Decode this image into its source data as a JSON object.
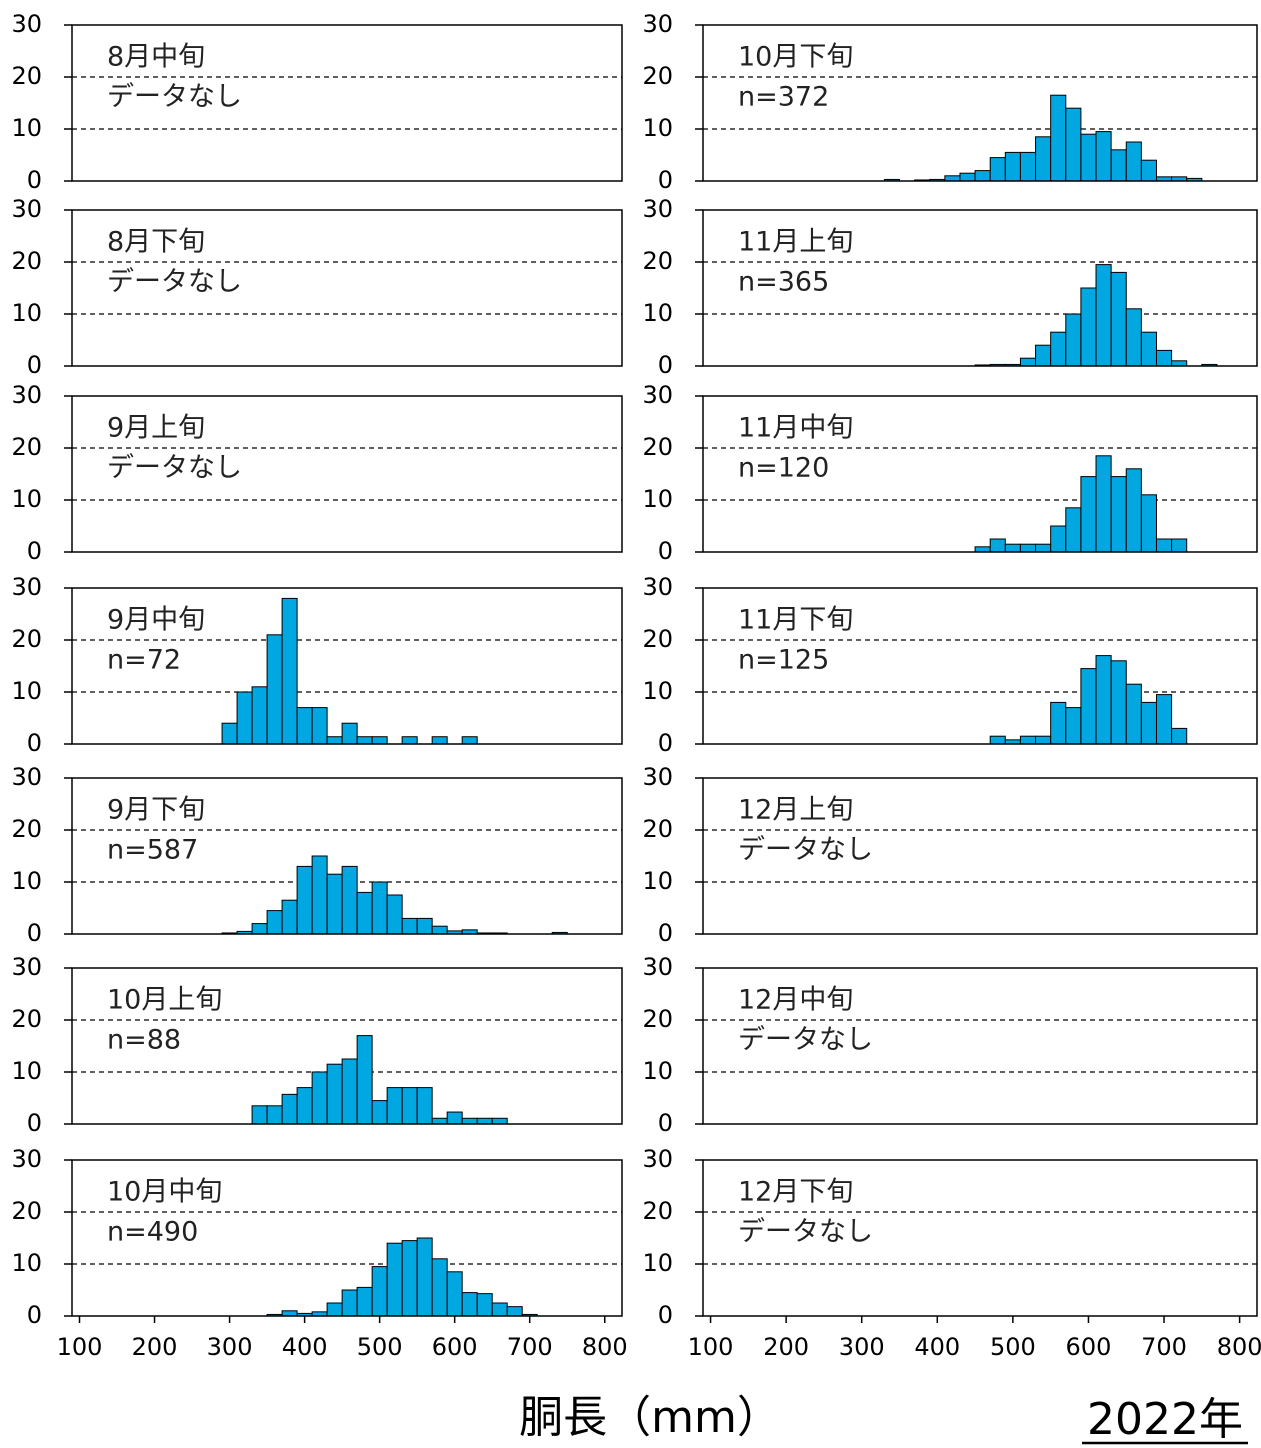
{
  "chart_data": [
    {
      "type": "histogram",
      "title": "8月中旬",
      "annotation": "データなし",
      "xlim": [
        90,
        823
      ],
      "ylim": [
        0,
        30
      ],
      "yticks": [
        0,
        10,
        20,
        30
      ],
      "grid": true,
      "color": "#00a7e1"
    },
    {
      "type": "histogram",
      "title": "8月下旬",
      "annotation": "データなし",
      "xlim": [
        90,
        823
      ],
      "ylim": [
        0,
        30
      ],
      "yticks": [
        0,
        10,
        20,
        30
      ],
      "grid": true,
      "color": "#00a7e1"
    },
    {
      "type": "histogram",
      "title": "9月上旬",
      "annotation": "データなし",
      "xlim": [
        90,
        823
      ],
      "ylim": [
        0,
        30
      ],
      "yticks": [
        0,
        10,
        20,
        30
      ],
      "grid": true,
      "color": "#00a7e1"
    },
    {
      "type": "histogram",
      "title": "9月中旬",
      "annotation": "n=72",
      "xlim": [
        90,
        823
      ],
      "ylim": [
        0,
        30
      ],
      "yticks": [
        0,
        10,
        20,
        30
      ],
      "grid": true,
      "color": "#00a7e1",
      "bins": [
        290,
        310,
        330,
        350,
        370,
        390,
        410,
        430,
        450,
        470,
        490,
        510,
        530,
        550,
        570,
        590,
        610,
        630
      ],
      "counts": [
        4,
        10,
        11,
        21,
        28,
        7,
        7,
        1.4,
        4,
        1.4,
        1.4,
        0,
        1.4,
        0,
        1.4,
        0,
        1.4
      ]
    },
    {
      "type": "histogram",
      "title": "9月下旬",
      "annotation": "n=587",
      "xlim": [
        90,
        823
      ],
      "ylim": [
        0,
        30
      ],
      "yticks": [
        0,
        10,
        20,
        30
      ],
      "grid": true,
      "color": "#00a7e1",
      "bins": [
        290,
        310,
        330,
        350,
        370,
        390,
        410,
        430,
        450,
        470,
        490,
        510,
        530,
        550,
        570,
        590,
        610,
        630,
        650,
        670,
        690,
        710,
        730,
        750
      ],
      "counts": [
        0.2,
        0.5,
        2,
        4.5,
        6.5,
        13,
        15,
        11.5,
        13,
        8,
        10,
        7.5,
        3,
        3,
        1.5,
        0.6,
        0.8,
        0.2,
        0.2,
        0,
        0,
        0,
        0.3
      ]
    },
    {
      "type": "histogram",
      "title": "10月上旬",
      "annotation": "n=88",
      "xlim": [
        90,
        823
      ],
      "ylim": [
        0,
        30
      ],
      "yticks": [
        0,
        10,
        20,
        30
      ],
      "grid": true,
      "color": "#00a7e1",
      "bins": [
        330,
        350,
        370,
        390,
        410,
        430,
        450,
        470,
        490,
        510,
        530,
        550,
        570,
        590,
        610,
        630,
        650,
        670
      ],
      "counts": [
        3.5,
        3.5,
        5.7,
        7,
        10,
        11.5,
        12.5,
        17,
        4.5,
        7,
        7,
        7,
        1.1,
        2.3,
        1.1,
        1.1,
        1.1
      ]
    },
    {
      "type": "histogram",
      "title": "10月中旬",
      "annotation": "n=490",
      "xlim": [
        90,
        823
      ],
      "ylim": [
        0,
        30
      ],
      "yticks": [
        0,
        10,
        20,
        30
      ],
      "grid": true,
      "color": "#00a7e1",
      "xticks": [
        100,
        200,
        300,
        400,
        500,
        600,
        700,
        800
      ],
      "bins": [
        350,
        370,
        390,
        410,
        430,
        450,
        470,
        490,
        510,
        530,
        550,
        570,
        590,
        610,
        630,
        650,
        670,
        690,
        710
      ],
      "counts": [
        0.3,
        1,
        0.5,
        0.8,
        2.5,
        5,
        5.5,
        9.5,
        14,
        14.5,
        15,
        11,
        8.5,
        4.5,
        4.3,
        2.5,
        1.8,
        0.3
      ]
    },
    {
      "type": "histogram",
      "title": "10月下旬",
      "annotation": "n=372",
      "xlim": [
        90,
        823
      ],
      "ylim": [
        0,
        30
      ],
      "yticks": [
        0,
        10,
        20,
        30
      ],
      "grid": true,
      "color": "#00a7e1",
      "bins": [
        330,
        350,
        370,
        390,
        410,
        430,
        450,
        470,
        490,
        510,
        530,
        550,
        570,
        590,
        610,
        630,
        650,
        670,
        690,
        710,
        730,
        750
      ],
      "counts": [
        0.3,
        0,
        0.2,
        0.3,
        1,
        1.5,
        2,
        4.5,
        5.5,
        5.5,
        8.5,
        16.5,
        14,
        9,
        9.5,
        6,
        7.5,
        4,
        0.8,
        0.8,
        0.5
      ]
    },
    {
      "type": "histogram",
      "title": "11月上旬",
      "annotation": "n=365",
      "xlim": [
        90,
        823
      ],
      "ylim": [
        0,
        30
      ],
      "yticks": [
        0,
        10,
        20,
        30
      ],
      "grid": true,
      "color": "#00a7e1",
      "bins": [
        450,
        470,
        490,
        510,
        530,
        550,
        570,
        590,
        610,
        630,
        650,
        670,
        690,
        710,
        730,
        750,
        770
      ],
      "counts": [
        0.2,
        0.3,
        0.3,
        1.5,
        4,
        6.5,
        10,
        15,
        19.5,
        18,
        11,
        6.5,
        3,
        1,
        0,
        0.3
      ]
    },
    {
      "type": "histogram",
      "title": "11月中旬",
      "annotation": "n=120",
      "xlim": [
        90,
        823
      ],
      "ylim": [
        0,
        30
      ],
      "yticks": [
        0,
        10,
        20,
        30
      ],
      "grid": true,
      "color": "#00a7e1",
      "bins": [
        450,
        470,
        490,
        510,
        530,
        550,
        570,
        590,
        610,
        630,
        650,
        670,
        690,
        710,
        730
      ],
      "counts": [
        1,
        2.5,
        1.5,
        1.5,
        1.5,
        5,
        8.5,
        14.5,
        18.5,
        14.5,
        16,
        11,
        2.5,
        2.5
      ]
    },
    {
      "type": "histogram",
      "title": "11月下旬",
      "annotation": "n=125",
      "xlim": [
        90,
        823
      ],
      "ylim": [
        0,
        30
      ],
      "yticks": [
        0,
        10,
        20,
        30
      ],
      "grid": true,
      "color": "#00a7e1",
      "bins": [
        470,
        490,
        510,
        530,
        550,
        570,
        590,
        610,
        630,
        650,
        670,
        690,
        710,
        730
      ],
      "counts": [
        1.5,
        0.8,
        1.5,
        1.5,
        8,
        7,
        14.5,
        17,
        16,
        11.5,
        8,
        9.5,
        3
      ]
    },
    {
      "type": "histogram",
      "title": "12月上旬",
      "annotation": "データなし",
      "xlim": [
        90,
        823
      ],
      "ylim": [
        0,
        30
      ],
      "yticks": [
        0,
        10,
        20,
        30
      ],
      "grid": true,
      "color": "#00a7e1"
    },
    {
      "type": "histogram",
      "title": "12月中旬",
      "annotation": "データなし",
      "xlim": [
        90,
        823
      ],
      "ylim": [
        0,
        30
      ],
      "yticks": [
        0,
        10,
        20,
        30
      ],
      "grid": true,
      "color": "#00a7e1"
    },
    {
      "type": "histogram",
      "title": "12月下旬",
      "annotation": "データなし",
      "xlim": [
        90,
        823
      ],
      "ylim": [
        0,
        30
      ],
      "yticks": [
        0,
        10,
        20,
        30
      ],
      "grid": true,
      "color": "#00a7e1",
      "xticks": [
        100,
        200,
        300,
        400,
        500,
        600,
        700,
        800
      ]
    }
  ],
  "x_label": "胴長（mm）",
  "year_label": "2022年"
}
